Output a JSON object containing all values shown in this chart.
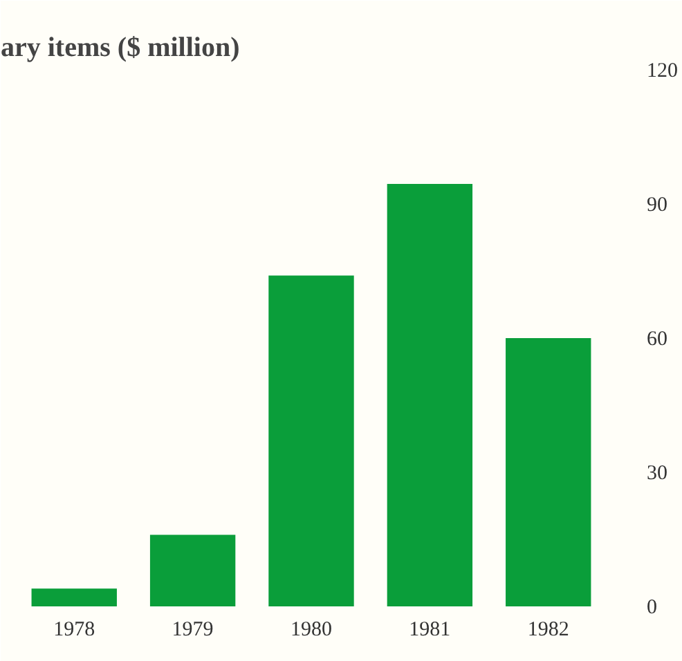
{
  "chart_data": {
    "type": "bar",
    "title": "ary items ($ million)",
    "categories": [
      "1978",
      "1979",
      "1980",
      "1981",
      "1982"
    ],
    "values": [
      4,
      16,
      74,
      94.5,
      60
    ],
    "color": "#0a9e3a",
    "ylim": [
      0,
      120
    ],
    "yticks": [
      0,
      30,
      60,
      90,
      120
    ],
    "grid": false
  }
}
